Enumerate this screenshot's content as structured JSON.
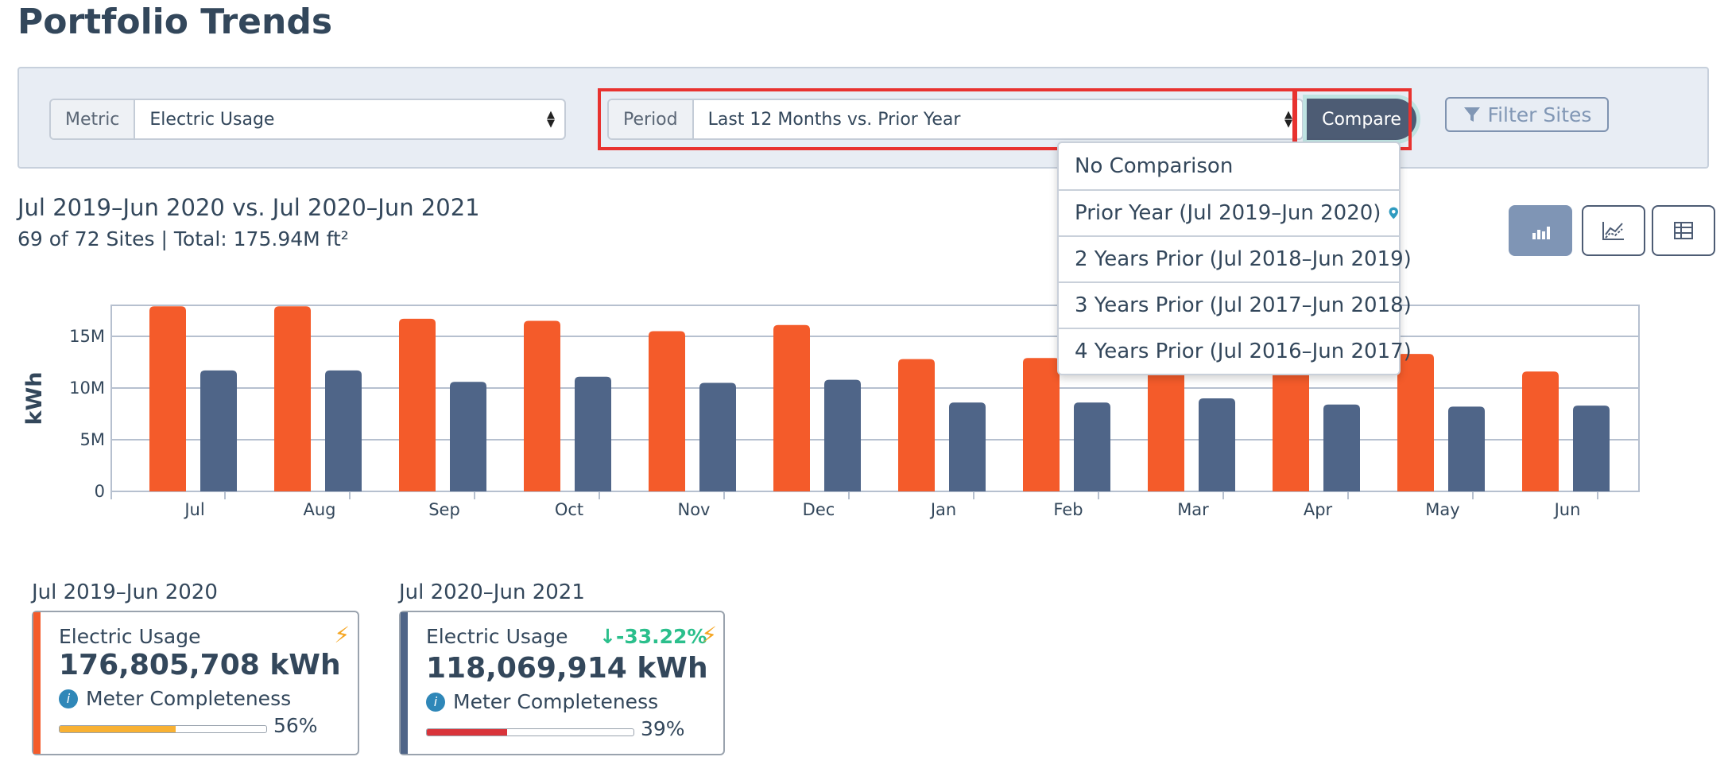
{
  "page": {
    "title": "Portfolio Trends"
  },
  "controls": {
    "metric": {
      "label": "Metric",
      "value": "Electric Usage"
    },
    "period": {
      "label": "Period",
      "value": "Last 12 Months vs. Prior Year"
    },
    "compare_label": "Compare",
    "filter_label": "Filter Sites"
  },
  "dropdown": {
    "items": [
      "No Comparison",
      "Prior Year (Jul 2019–Jun 2020)",
      "2 Years Prior (Jul 2018–Jun 2019)",
      "3 Years Prior (Jul 2017–Jun 2018)",
      "4 Years Prior (Jul 2016–Jun 2017)"
    ],
    "selected_icon": "map-pin-icon"
  },
  "summary": {
    "range_title": "Jul 2019–Jun 2020 vs. Jul 2020–Jun 2021",
    "sites": "69 of 72 Sites | Total: 175.94M ft²"
  },
  "view_buttons": [
    "bar-chart-icon",
    "line-chart-icon",
    "table-icon"
  ],
  "chart_data": {
    "type": "bar",
    "ylabel": "kWh",
    "xlabel": "",
    "ylim": [
      0,
      18000000
    ],
    "yticks": [
      0,
      5000000,
      10000000,
      15000000
    ],
    "ytick_labels": [
      "0",
      "5M",
      "10M",
      "15M"
    ],
    "categories": [
      "Jul",
      "Aug",
      "Sep",
      "Oct",
      "Nov",
      "Dec",
      "Jan",
      "Feb",
      "Mar",
      "Apr",
      "May",
      "Jun"
    ],
    "grid": true,
    "series": [
      {
        "color": "#f45b2a",
        "values": [
          17900000,
          17900000,
          16700000,
          16500000,
          15500000,
          16100000,
          12800000,
          12900000,
          13600000,
          13500000,
          13300000,
          11600000
        ]
      },
      {
        "color": "#4f6588",
        "values": [
          11700000,
          11700000,
          10600000,
          11100000,
          10500000,
          10800000,
          8600000,
          8600000,
          9000000,
          8400000,
          8200000,
          8300000
        ]
      }
    ]
  },
  "cards": [
    {
      "heading": "Jul 2019–Jun 2020",
      "metric": "Electric Usage",
      "total": "176,805,708 kWh",
      "completeness_label": "Meter Completeness",
      "completeness_pct": "56%",
      "completeness_value": 0.56,
      "accent_color": "#f45b2a",
      "bar_color": "#f8b133",
      "change": ""
    },
    {
      "heading": "Jul 2020–Jun 2021",
      "metric": "Electric Usage",
      "total": "118,069,914 kWh",
      "completeness_label": "Meter Completeness",
      "completeness_pct": "39%",
      "completeness_value": 0.39,
      "accent_color": "#4f6588",
      "bar_color": "#d9343a",
      "change": "-33.22%"
    }
  ]
}
